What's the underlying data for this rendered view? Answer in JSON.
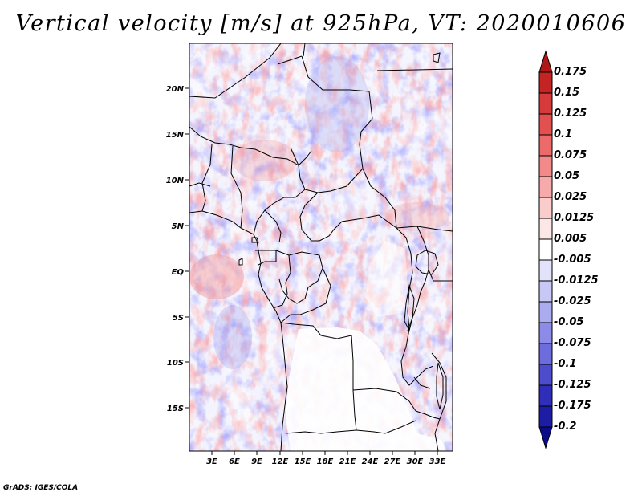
{
  "title": "Vertical velocity [m/s] at 925hPa, VT: 2020010606",
  "credit": "GrADS: IGES/COLA",
  "map": {
    "lon_range": [
      0,
      35
    ],
    "lat_range": [
      -20,
      24.5
    ],
    "lon_ticks": [
      "3E",
      "6E",
      "9E",
      "12E",
      "15E",
      "18E",
      "21E",
      "24E",
      "27E",
      "30E",
      "33E"
    ],
    "lat_ticks": [
      "20N",
      "15N",
      "10N",
      "5N",
      "EQ",
      "5S",
      "10S",
      "15S"
    ]
  },
  "colorbar": {
    "labels": [
      "0.175",
      "0.15",
      "0.125",
      "0.1",
      "0.075",
      "0.05",
      "0.025",
      "0.0125",
      "0.005",
      "-0.005",
      "-0.0125",
      "-0.025",
      "-0.05",
      "-0.075",
      "-0.1",
      "-0.125",
      "-0.175",
      "-0.2"
    ],
    "colors": [
      "#b01818",
      "#c42424",
      "#d63a3a",
      "#e35050",
      "#ec6a6a",
      "#f28a8a",
      "#f7aaaa",
      "#fbcccc",
      "#fde6e6",
      "#ffffff",
      "#e2e2fb",
      "#c8c8f6",
      "#ababf0",
      "#8c8ce8",
      "#6c6cdc",
      "#4c4ccc",
      "#2e2eb8",
      "#1c1ca4",
      "#0c0c88"
    ]
  }
}
